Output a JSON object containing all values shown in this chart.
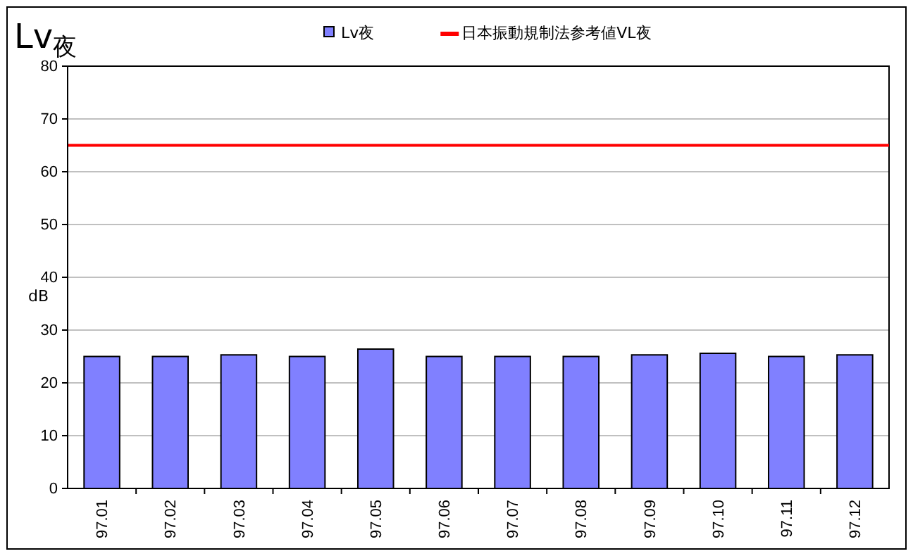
{
  "chart_data": {
    "type": "bar",
    "title": "Lv$_{夜}$",
    "ylabel": "dB",
    "categories": [
      "97.01",
      "97.02",
      "97.03",
      "97.04",
      "97.05",
      "97.06",
      "97.07",
      "97.08",
      "97.09",
      "97.10",
      "97.11",
      "97.12"
    ],
    "series": [
      {
        "name": "Lv夜",
        "color": "#8080ff",
        "values": [
          25,
          25,
          25.3,
          25,
          26.4,
          25,
          25,
          25,
          25.3,
          25.6,
          25,
          25.3
        ]
      }
    ],
    "ylim": [
      0,
      80
    ],
    "yticks": [
      0,
      10,
      20,
      30,
      40,
      50,
      60,
      70,
      80
    ],
    "grid": "y",
    "legend": "top",
    "ref_lines": [
      {
        "axis": "y",
        "value": 65,
        "label": "日本振動規制法参考値VL夜",
        "color": "#ff0000"
      }
    ]
  }
}
